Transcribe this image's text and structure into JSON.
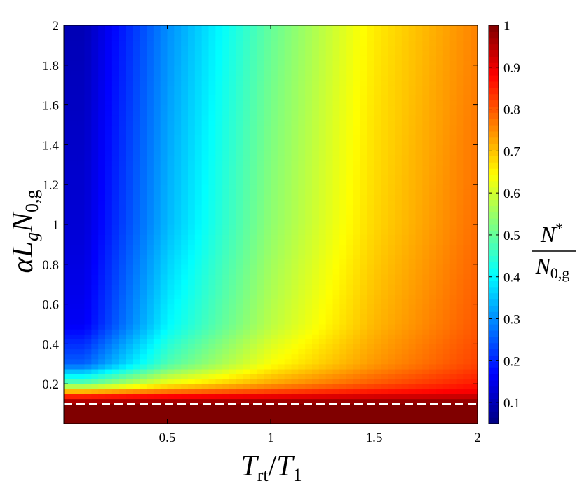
{
  "chart_data": {
    "type": "heatmap",
    "title": "",
    "xlabel": {
      "main": "T",
      "main_sub": "rt",
      "slash": "/",
      "denom": "T",
      "denom_sub": "1"
    },
    "ylabel": {
      "alpha": "α",
      "L": "L",
      "L_sub": "g",
      "N": "N",
      "N_sub": "0,g"
    },
    "colorbar_label": {
      "numerator": "N",
      "numerator_sup": "*",
      "denominator": "N",
      "denominator_sub": "0,g"
    },
    "x_range": [
      0,
      2
    ],
    "y_range": [
      0,
      2
    ],
    "x_ticks": [
      0.5,
      1,
      1.5,
      2
    ],
    "x_tick_labels": [
      "0.5",
      "1",
      "1.5",
      "2"
    ],
    "y_ticks": [
      0.2,
      0.4,
      0.6,
      0.8,
      1,
      1.2,
      1.4,
      1.6,
      1.8,
      2
    ],
    "y_tick_labels": [
      "0.2",
      "0.4",
      "0.6",
      "0.8",
      "1",
      "1.2",
      "1.4",
      "1.6",
      "1.8",
      "2"
    ],
    "colorbar_range": [
      0.05,
      1
    ],
    "colorbar_ticks": [
      0.1,
      0.2,
      0.3,
      0.4,
      0.5,
      0.6,
      0.7,
      0.8,
      0.9,
      1
    ],
    "colorbar_tick_labels": [
      "0.1",
      "0.2",
      "0.3",
      "0.4",
      "0.5",
      "0.6",
      "0.7",
      "0.8",
      "0.9",
      "1"
    ],
    "colormap": "jet",
    "threshold_line": {
      "y": 0.1,
      "style": "dashed",
      "color": "#ffffff"
    },
    "grid": false,
    "sample_values": {
      "y": [
        2.0,
        1.0,
        0.5,
        0.3,
        0.2,
        0.15
      ],
      "x": [
        0.1,
        0.5,
        1.0,
        1.5,
        2.0
      ],
      "values": [
        [
          0.1,
          0.3,
          0.5,
          0.66,
          0.76
        ],
        [
          0.13,
          0.34,
          0.54,
          0.68,
          0.78
        ],
        [
          0.16,
          0.4,
          0.58,
          0.71,
          0.8
        ],
        [
          0.26,
          0.48,
          0.64,
          0.74,
          0.82
        ],
        [
          0.5,
          0.64,
          0.73,
          0.8,
          0.86
        ],
        [
          0.78,
          0.82,
          0.85,
          0.88,
          0.9
        ]
      ],
      "below_threshold_value": 1.0
    }
  }
}
